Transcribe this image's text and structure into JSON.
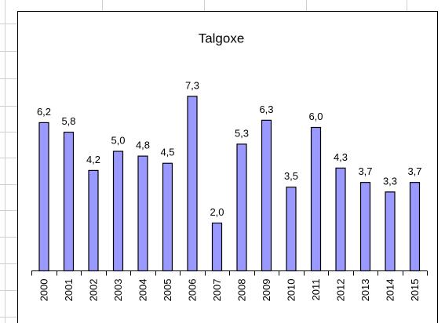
{
  "chart_data": {
    "type": "bar",
    "title": "Talgoxe",
    "categories": [
      "2000",
      "2001",
      "2002",
      "2003",
      "2004",
      "2005",
      "2006",
      "2007",
      "2008",
      "2009",
      "2010",
      "2011",
      "2012",
      "2013",
      "2014",
      "2015"
    ],
    "values": [
      6.2,
      5.8,
      4.2,
      5.0,
      4.8,
      4.5,
      7.3,
      2.0,
      5.3,
      6.3,
      3.5,
      6.0,
      4.3,
      3.7,
      3.3,
      3.7
    ],
    "value_labels": [
      "6,2",
      "5,8",
      "4,2",
      "5,0",
      "4,8",
      "4,5",
      "7,3",
      "2,0",
      "5,3",
      "6,3",
      "3,5",
      "6,0",
      "4,3",
      "3,7",
      "3,3",
      "3,7"
    ],
    "color": "#9999ff"
  }
}
